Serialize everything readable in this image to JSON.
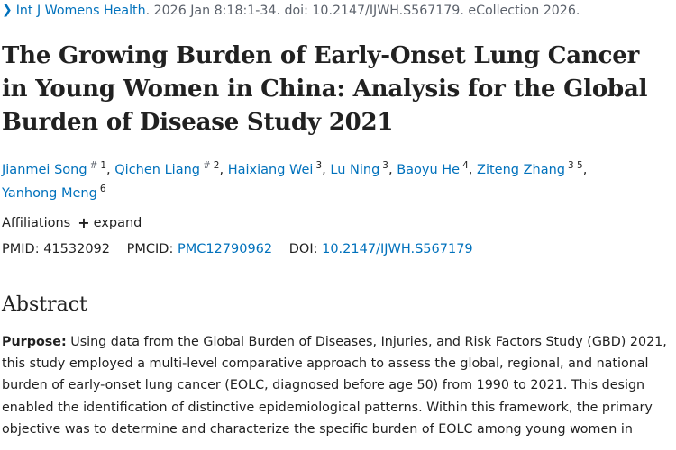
{
  "citation": {
    "journal": "Int J Womens Health",
    "details": ". 2026 Jan 8:18:1-34. doi: 10.2147/IJWH.S567179. eCollection 2026."
  },
  "title": "The Growing Burden of Early-Onset Lung Cancer in Young Women in China: Analysis for the Global Burden of Disease Study 2021",
  "authors": [
    {
      "name": "Jianmei Song",
      "equal": "#",
      "affil": "1"
    },
    {
      "name": "Qichen Liang",
      "equal": "#",
      "affil": "2"
    },
    {
      "name": "Haixiang Wei",
      "equal": "",
      "affil": "3"
    },
    {
      "name": "Lu Ning",
      "equal": "",
      "affil": "3"
    },
    {
      "name": "Baoyu He",
      "equal": "",
      "affil": "4"
    },
    {
      "name": "Ziteng Zhang",
      "equal": "",
      "affil": "3 5"
    },
    {
      "name": "Yanhong Meng",
      "equal": "",
      "affil": "6"
    }
  ],
  "affiliations": {
    "label": "Affiliations",
    "expand_label": "expand"
  },
  "identifiers": {
    "pmid_label": "PMID:",
    "pmid": "41532092",
    "pmcid_label": "PMCID:",
    "pmcid": "PMC12790962",
    "doi_label": "DOI:",
    "doi": "10.2147/IJWH.S567179"
  },
  "abstract": {
    "heading": "Abstract",
    "purpose_label": "Purpose:",
    "purpose_text": " Using data from the Global Burden of Diseases, Injuries, and Risk Factors Study (GBD) 2021, this study employed a multi-level comparative approach to assess the global, regional, and national burden of early-onset lung cancer (EOLC, diagnosed before age 50) from 1990 to 2021. This design enabled the identification of distinctive epidemiological patterns. Within this framework, the primary objective was to determine and characterize the specific burden of EOLC among young women in"
  }
}
